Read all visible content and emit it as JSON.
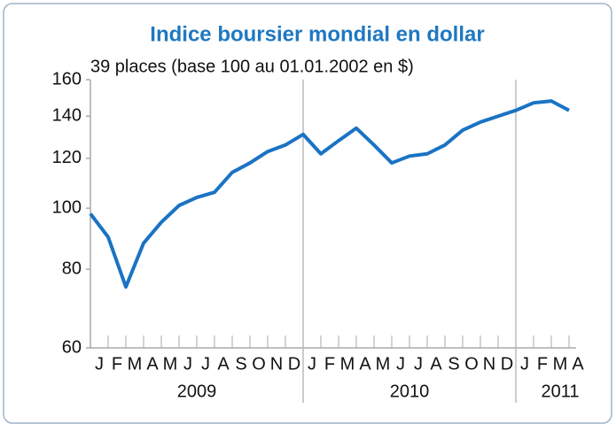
{
  "chart_data": {
    "type": "line",
    "title": "Indice boursier mondial en dollar",
    "subtitle": "39 places (base 100 au 01.01.2002 en $)",
    "x": [
      "2009-01",
      "2009-02",
      "2009-03",
      "2009-04",
      "2009-05",
      "2009-06",
      "2009-07",
      "2009-08",
      "2009-09",
      "2009-10",
      "2009-11",
      "2009-12",
      "2010-01",
      "2010-02",
      "2010-03",
      "2010-04",
      "2010-05",
      "2010-06",
      "2010-07",
      "2010-08",
      "2010-09",
      "2010-10",
      "2010-11",
      "2010-12",
      "2011-01",
      "2011-02",
      "2011-03",
      "2011-04"
    ],
    "month_labels": [
      "J",
      "F",
      "M",
      "A",
      "M",
      "J",
      "J",
      "A",
      "S",
      "O",
      "N",
      "D",
      "J",
      "F",
      "M",
      "A",
      "M",
      "J",
      "J",
      "A",
      "S",
      "O",
      "N",
      "D",
      "J",
      "F",
      "M",
      "A"
    ],
    "years": [
      "2009",
      "2010",
      "2011"
    ],
    "series": [
      {
        "color": "#1a73c4",
        "values": [
          98,
          90,
          75,
          88,
          95,
          101,
          104,
          106,
          114,
          118,
          123,
          126,
          131,
          122,
          128,
          134,
          126,
          118,
          121,
          122,
          126,
          133,
          137,
          140,
          143,
          147,
          148,
          143
        ]
      }
    ],
    "ylim": [
      60,
      160
    ],
    "yticks": [
      60,
      80,
      100,
      120,
      140,
      160
    ],
    "log_scale": true,
    "grid": false
  }
}
